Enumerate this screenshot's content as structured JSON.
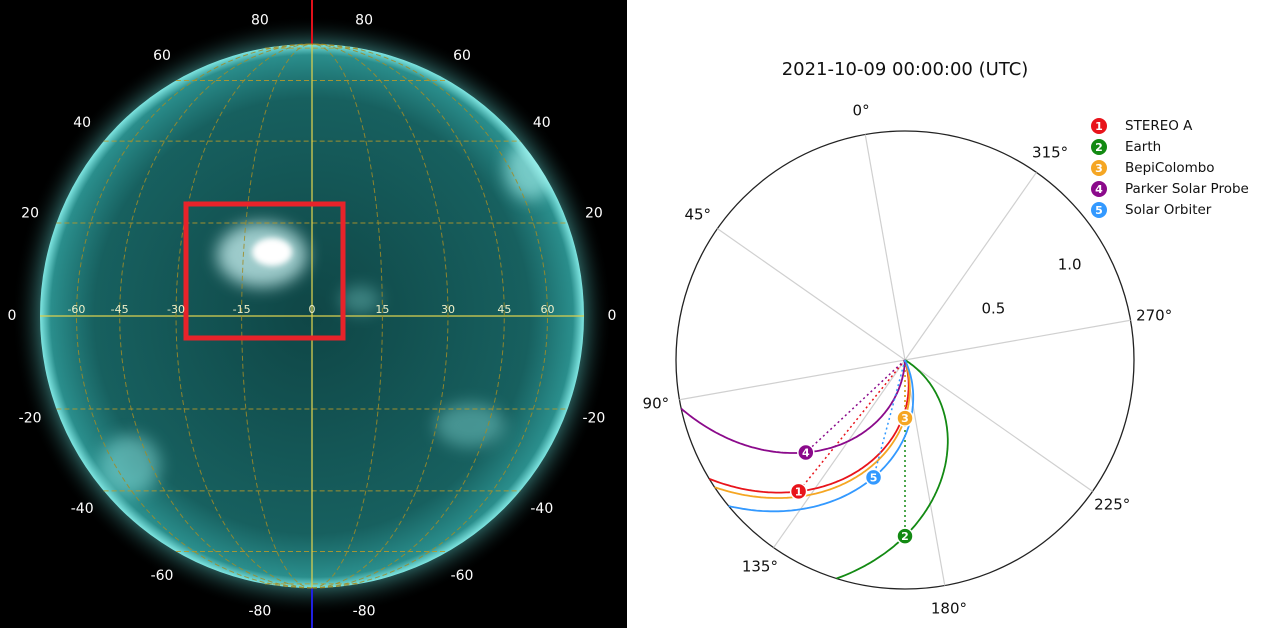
{
  "chart_data": [
    {
      "type": "solar-disk",
      "lat_ticks": [
        80,
        60,
        40,
        20,
        0,
        -20,
        -40,
        -60,
        -80
      ],
      "lon_ticks": [
        -60,
        -45,
        -30,
        -15,
        0,
        15,
        30,
        45,
        60
      ]
    },
    {
      "type": "polar",
      "title": "2021-10-09 00:00:00 (UTC)",
      "thetaticks": [
        {
          "value": 0,
          "label": "0°"
        },
        {
          "value": 45,
          "label": "45°"
        },
        {
          "value": 90,
          "label": "90°"
        },
        {
          "value": 135,
          "label": "135°"
        },
        {
          "value": 180,
          "label": "180°"
        },
        {
          "value": 225,
          "label": "225°"
        },
        {
          "value": 270,
          "label": "270°"
        },
        {
          "value": 315,
          "label": "315°"
        }
      ],
      "rlim": [
        0,
        1.3
      ],
      "rticks": [
        0.5,
        {
          "value": 1,
          "label": "1.0"
        }
      ],
      "series": [
        {
          "name": "STEREO A",
          "marker": "1",
          "color": "#e8141b",
          "theta": 131,
          "r": 0.96
        },
        {
          "name": "Earth",
          "marker": "2",
          "color": "#138a13",
          "theta": 170,
          "r": 1.0
        },
        {
          "name": "BepiColombo",
          "marker": "3",
          "color": "#f5a623",
          "theta": 170,
          "r": 0.33
        },
        {
          "name": "Parker Solar Probe",
          "marker": "4",
          "color": "#8b0a8b",
          "theta": 123,
          "r": 0.77
        },
        {
          "name": "Solar Orbiter",
          "marker": "5",
          "color": "#3399ff",
          "theta": 155,
          "r": 0.69
        }
      ]
    }
  ]
}
